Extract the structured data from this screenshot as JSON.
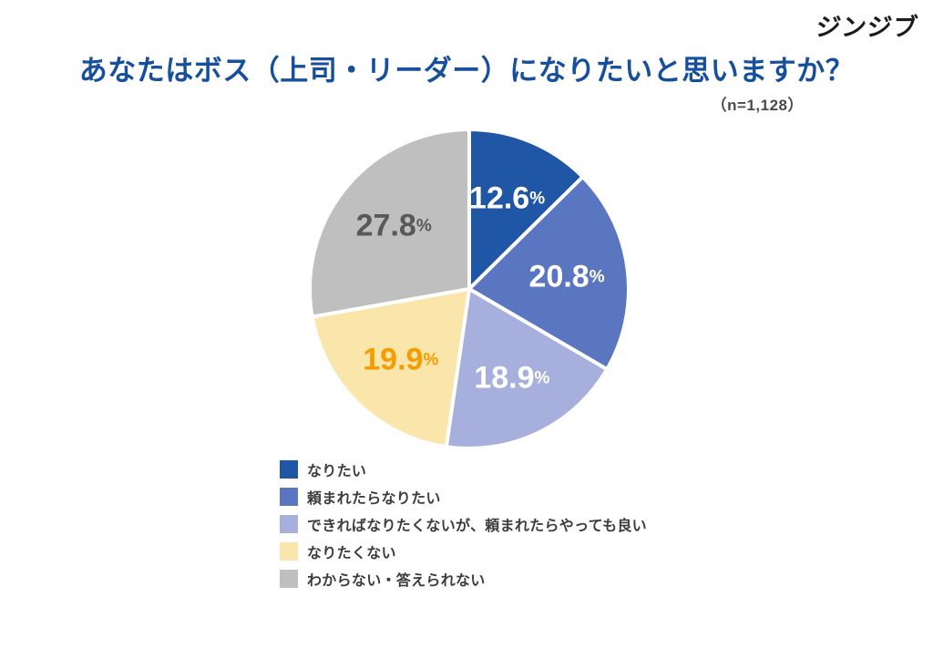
{
  "logo": "ジンジブ",
  "title": "あなたはボス（上司・リーダー）になりたいと思いますか？",
  "sample_note": "（n=1,128）",
  "colors": {
    "background": "#FFFFFF",
    "title_text": "#164F9C",
    "sample_note_text": "#4A4A4A",
    "legend_text": "#3C3C3C",
    "logo_text": "#1B1B24",
    "slice_border": "#FFFFFF"
  },
  "chart_data": {
    "type": "pie",
    "title": "あなたはボス（上司・リーダー）になりたいと思いますか？",
    "sample_size": "n=1,128",
    "unit": "%",
    "start_angle_deg": 0,
    "direction": "clockwise",
    "legend_position": "bottom-left",
    "slices": [
      {
        "label": "なりたい",
        "value": 12.6,
        "value_label": "12.6%",
        "color": "#2056A6",
        "value_label_color": "#FFFFFF"
      },
      {
        "label": "頼まれたらなりたい",
        "value": 20.8,
        "value_label": "20.8%",
        "color": "#5B76C0",
        "value_label_color": "#FFFFFF"
      },
      {
        "label": "できればなりたくないが、頼まれたらやっても良い",
        "value": 18.9,
        "value_label": "18.9%",
        "color": "#A7B0DC",
        "value_label_color": "#FFFFFF"
      },
      {
        "label": "なりたくない",
        "value": 19.9,
        "value_label": "19.9%",
        "color": "#FAE6AA",
        "value_label_color": "#F49D00"
      },
      {
        "label": "わからない・答えられない",
        "value": 27.8,
        "value_label": "27.8%",
        "color": "#BFBFBF",
        "value_label_color": "#595959"
      }
    ]
  }
}
